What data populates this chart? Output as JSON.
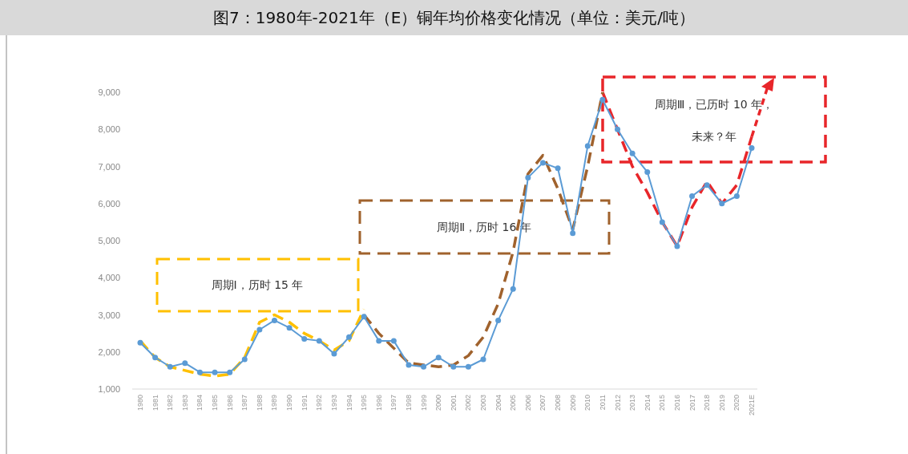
{
  "chart_data": {
    "type": "line",
    "title": "图7：1980年-2021年（E）铜年均价格变化情况（单位：美元/吨）",
    "categories": [
      "1980",
      "1981",
      "1982",
      "1983",
      "1984",
      "1985",
      "1986",
      "1987",
      "1988",
      "1989",
      "1990",
      "1991",
      "1992",
      "1993",
      "1994",
      "1995",
      "1996",
      "1997",
      "1998",
      "1999",
      "2000",
      "2001",
      "2002",
      "2003",
      "2004",
      "2005",
      "2006",
      "2007",
      "2008",
      "2009",
      "2010",
      "2011",
      "2012",
      "2013",
      "2014",
      "2015",
      "2016",
      "2017",
      "2018",
      "2019",
      "2020",
      "2021E"
    ],
    "series": [
      {
        "color": "#5b9bd5",
        "marker": "circle",
        "line_style": "solid",
        "values": [
          2250,
          1850,
          1600,
          1700,
          1450,
          1450,
          1450,
          1800,
          2600,
          2850,
          2650,
          2350,
          2300,
          1950,
          2400,
          2950,
          2300,
          2300,
          1650,
          1600,
          1850,
          1600,
          1600,
          1800,
          2850,
          3700,
          6700,
          7100,
          6950,
          5200,
          7550,
          8800,
          8000,
          7350,
          6850,
          5500,
          4850,
          6200,
          6500,
          6000,
          6200,
          7500
        ]
      },
      {
        "color": "#ffc000",
        "marker": "none",
        "line_style": "dashed",
        "values": [
          2300,
          1850,
          1600,
          1500,
          1400,
          1350,
          1400,
          1850,
          2800,
          3000,
          2800,
          2500,
          2300,
          2050,
          2300,
          3150,
          null,
          null,
          null,
          null,
          null,
          null,
          null,
          null,
          null,
          null,
          null,
          null,
          null,
          null,
          null,
          null,
          null,
          null,
          null,
          null,
          null,
          null,
          null,
          null,
          null,
          null
        ]
      },
      {
        "color": "#a0622d",
        "marker": "none",
        "line_style": "dashed",
        "values": [
          null,
          null,
          null,
          null,
          null,
          null,
          null,
          null,
          null,
          null,
          null,
          null,
          null,
          null,
          null,
          3000,
          2500,
          2100,
          1700,
          1650,
          1600,
          1650,
          1900,
          2400,
          3300,
          4700,
          6800,
          7300,
          6400,
          5300,
          7000,
          9000,
          null,
          null,
          null,
          null,
          null,
          null,
          null,
          null,
          null,
          null
        ]
      },
      {
        "color": "#e8262a",
        "marker": "none",
        "line_style": "dashed",
        "values": [
          null,
          null,
          null,
          null,
          null,
          null,
          null,
          null,
          null,
          null,
          null,
          null,
          null,
          null,
          null,
          null,
          null,
          null,
          null,
          null,
          null,
          null,
          null,
          null,
          null,
          null,
          null,
          null,
          null,
          null,
          null,
          9000,
          8000,
          7000,
          6300,
          5500,
          4850,
          5900,
          6600,
          6000,
          6500,
          7800
        ]
      }
    ],
    "ylim": [
      1000,
      9000
    ],
    "yticks": [
      {
        "value": 1000,
        "label": "1,000"
      },
      {
        "value": 2000,
        "label": "2,000"
      },
      {
        "value": 3000,
        "label": "3,000"
      },
      {
        "value": 4000,
        "label": "4,000"
      },
      {
        "value": 5000,
        "label": "5,000"
      },
      {
        "value": 6000,
        "label": "6,000"
      },
      {
        "value": 7000,
        "label": "7,000"
      },
      {
        "value": 8000,
        "label": "8,000"
      },
      {
        "value": 9000,
        "label": "9,000"
      }
    ],
    "grid": false,
    "annotations": [
      "周期Ⅰ，历时 15 年",
      "周期Ⅱ，历时 16 年",
      "周期Ⅲ，已历时 10 年，",
      "未来？年"
    ]
  }
}
